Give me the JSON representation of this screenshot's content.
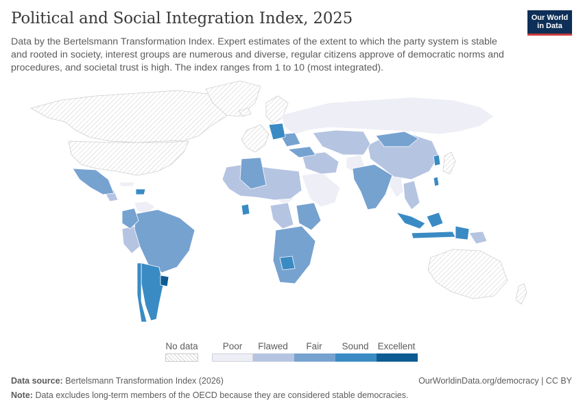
{
  "header": {
    "title": "Political and Social Integration Index, 2025",
    "subtitle": "Data by the Bertelsmann Transformation Index. Expert estimates of the extent to which the party system is stable and rooted in society, interest groups are numerous and diverse, regular citizens approve of democratic norms and procedures, and societal trust is high. The index ranges from 1 to 10 (most integrated).",
    "logo_line1": "Our World",
    "logo_line2": "in Data"
  },
  "legend": {
    "nodata_label": "No data",
    "categories": [
      {
        "label": "Poor",
        "color": "#eeeef6"
      },
      {
        "label": "Flawed",
        "color": "#b5c4e1"
      },
      {
        "label": "Fair",
        "color": "#76a2d0"
      },
      {
        "label": "Sound",
        "color": "#3a8bc4"
      },
      {
        "label": "Excellent",
        "color": "#0d5b92"
      }
    ]
  },
  "colors": {
    "nodata_fill": "#e3e3e3",
    "border": "#ffffff",
    "accent": "#0e2f57"
  },
  "footer": {
    "source_label": "Data source:",
    "source_text": "Bertelsmann Transformation Index (2026)",
    "right_text": "OurWorldinData.org/democracy | CC BY",
    "note_label": "Note:",
    "note_text": "Data excludes long-term members of the OECD because they are considered stable democracies."
  }
}
